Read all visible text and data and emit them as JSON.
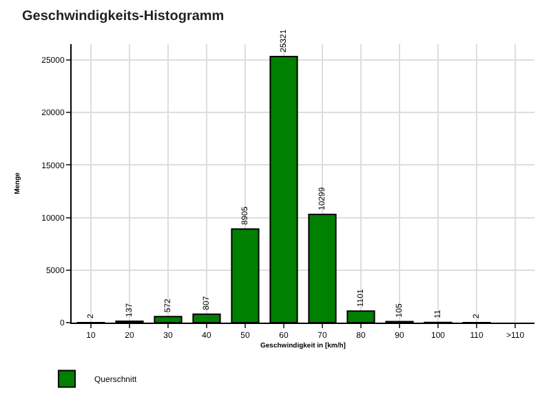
{
  "chart_data": {
    "type": "bar",
    "title": "Geschwindigkeits-Histogramm",
    "xlabel": "Geschwindigkeit in [km/h]",
    "ylabel": "Menge",
    "categories": [
      "10",
      "20",
      "30",
      "40",
      "50",
      "60",
      "70",
      "80",
      "90",
      "100",
      "110",
      ">110"
    ],
    "series": [
      {
        "name": "Querschnitt",
        "color": "#008000",
        "values": [
          2,
          137,
          572,
          807,
          8905,
          25321,
          10299,
          1101,
          105,
          11,
          2,
          null
        ]
      }
    ],
    "ylim": [
      0,
      26500
    ],
    "yticks": [
      0,
      5000,
      10000,
      15000,
      20000,
      25000
    ],
    "grid": true,
    "legend": "bottom left",
    "data_labels": true
  }
}
